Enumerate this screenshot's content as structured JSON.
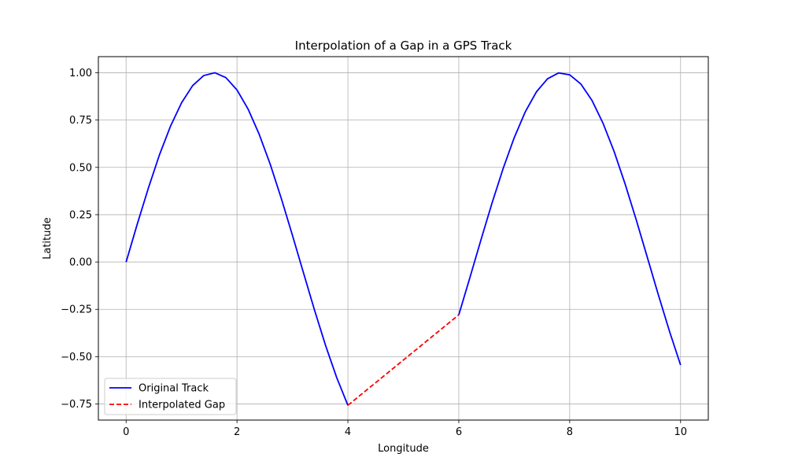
{
  "chart_data": {
    "type": "line",
    "title": "Interpolation of a Gap in a GPS Track",
    "xlabel": "Longitude",
    "ylabel": "Latitude",
    "xlim": [
      -0.5,
      10.5
    ],
    "ylim": [
      -0.835,
      1.085
    ],
    "xticks": [
      0,
      2,
      4,
      6,
      8,
      10
    ],
    "xtick_labels": [
      "0",
      "2",
      "4",
      "6",
      "8",
      "10"
    ],
    "yticks": [
      -0.75,
      -0.5,
      -0.25,
      0.0,
      0.25,
      0.5,
      0.75,
      1.0
    ],
    "ytick_labels": [
      "−0.75",
      "−0.50",
      "−0.25",
      "0.00",
      "0.25",
      "0.50",
      "0.75",
      "1.00"
    ],
    "grid": true,
    "legend_position": "lower-left",
    "series": [
      {
        "name": "Original Track",
        "color": "#0000ff",
        "style": "solid",
        "segments": [
          {
            "x": [
              0.0,
              0.2,
              0.4,
              0.6,
              0.8,
              1.0,
              1.2,
              1.4,
              1.6,
              1.8,
              2.0,
              2.2,
              2.4,
              2.6,
              2.8,
              3.0,
              3.2,
              3.4,
              3.6,
              3.8,
              4.0
            ],
            "y": [
              0.0,
              0.199,
              0.389,
              0.565,
              0.717,
              0.841,
              0.932,
              0.985,
              1.0,
              0.974,
              0.909,
              0.808,
              0.675,
              0.516,
              0.335,
              0.141,
              -0.058,
              -0.256,
              -0.443,
              -0.612,
              -0.757
            ]
          },
          {
            "x": [
              6.0,
              6.2,
              6.4,
              6.6,
              6.8,
              7.0,
              7.2,
              7.4,
              7.6,
              7.8,
              8.0,
              8.2,
              8.4,
              8.6,
              8.8,
              9.0,
              9.2,
              9.4,
              9.6,
              9.8,
              10.0
            ],
            "y": [
              -0.279,
              -0.083,
              0.117,
              0.312,
              0.494,
              0.657,
              0.794,
              0.899,
              0.968,
              0.999,
              0.989,
              0.941,
              0.855,
              0.734,
              0.585,
              0.412,
              0.223,
              0.025,
              -0.174,
              -0.366,
              -0.544
            ]
          }
        ]
      },
      {
        "name": "Interpolated Gap",
        "color": "#ff0000",
        "style": "dashed",
        "segments": [
          {
            "x": [
              4.0,
              6.0
            ],
            "y": [
              -0.757,
              -0.279
            ]
          }
        ]
      }
    ]
  }
}
